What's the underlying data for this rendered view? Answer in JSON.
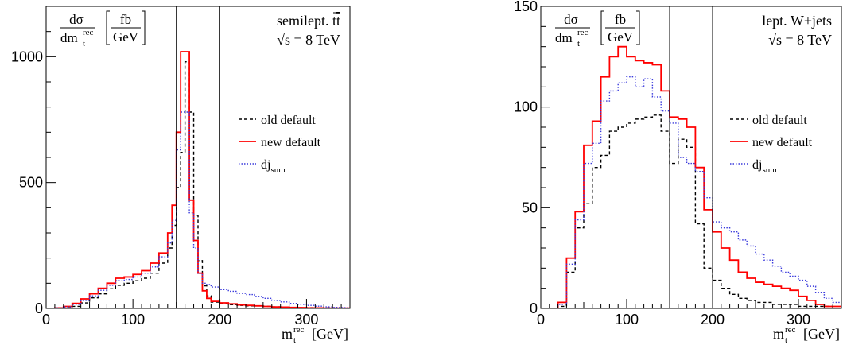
{
  "chart_data": [
    {
      "type": "step",
      "title": "",
      "xlabel_main": "m",
      "xlabel_sub": "t",
      "xlabel_sup": "rec",
      "xlabel_unit": "[GeV]",
      "ylabel_num": "dσ",
      "ylabel_den_main": "dm",
      "ylabel_den_sub": "t",
      "ylabel_den_sup": "rec",
      "ylabel_unit_num": "fb",
      "ylabel_unit_den": "GeV",
      "annotation_line1": "semilept. t",
      "annotation_line1_tbar": "t",
      "annotation_line2": "√s = 8 TeV",
      "xlim": [
        0,
        350
      ],
      "ylim": [
        0,
        1200
      ],
      "x_ticks": [
        0,
        100,
        200,
        300
      ],
      "x_tick_labels": [
        "0",
        "100",
        "200",
        "300"
      ],
      "y_ticks": [
        0,
        500,
        1000
      ],
      "y_tick_labels": [
        "0",
        "500",
        "1000"
      ],
      "vertical_lines": [
        150,
        200
      ],
      "bin_edges": [
        0,
        10,
        20,
        30,
        40,
        50,
        60,
        70,
        80,
        90,
        100,
        110,
        120,
        130,
        140,
        145,
        150,
        155,
        160,
        165,
        170,
        175,
        180,
        185,
        190,
        200,
        210,
        220,
        230,
        240,
        250,
        260,
        270,
        280,
        290,
        300,
        310,
        320,
        330,
        340,
        350
      ],
      "series": [
        {
          "name": "old default",
          "color": "#000000",
          "dash": "4,3",
          "values": [
            0,
            0,
            2,
            8,
            22,
            42,
            58,
            78,
            92,
            100,
            110,
            120,
            140,
            180,
            240,
            330,
            480,
            620,
            980,
            780,
            370,
            190,
            90,
            50,
            25,
            20,
            15,
            12,
            10,
            10,
            8,
            6,
            5,
            4,
            3,
            3,
            2,
            2,
            1,
            1
          ]
        },
        {
          "name": "new default",
          "color": "#ff0000",
          "dash": "",
          "values": [
            0,
            2,
            8,
            20,
            38,
            58,
            80,
            100,
            120,
            125,
            135,
            150,
            180,
            220,
            300,
            410,
            700,
            1020,
            1020,
            430,
            270,
            140,
            70,
            40,
            28,
            22,
            18,
            14,
            12,
            10,
            8,
            6,
            5,
            4,
            3,
            2,
            2,
            1,
            1,
            1
          ]
        },
        {
          "name": "dj_sum",
          "label_main": "dj",
          "label_sub": "sum",
          "color": "#3a3adc",
          "dash": "1.5,2",
          "values": [
            0,
            2,
            6,
            16,
            32,
            50,
            72,
            92,
            110,
            115,
            125,
            140,
            165,
            205,
            260,
            350,
            630,
            780,
            780,
            380,
            240,
            140,
            100,
            95,
            85,
            75,
            68,
            60,
            55,
            48,
            40,
            32,
            26,
            20,
            16,
            12,
            9,
            6,
            4,
            3
          ]
        }
      ]
    },
    {
      "type": "step",
      "title": "",
      "xlabel_main": "m",
      "xlabel_sub": "t",
      "xlabel_sup": "rec",
      "xlabel_unit": "[GeV]",
      "ylabel_num": "dσ",
      "ylabel_den_main": "dm",
      "ylabel_den_sub": "t",
      "ylabel_den_sup": "rec",
      "ylabel_unit_num": "fb",
      "ylabel_unit_den": "GeV",
      "annotation_line1": "lept. W+jets",
      "annotation_line2": "√s = 8 TeV",
      "xlim": [
        0,
        350
      ],
      "ylim": [
        0,
        150
      ],
      "x_ticks": [
        0,
        100,
        200,
        300
      ],
      "x_tick_labels": [
        "0",
        "100",
        "200",
        "300"
      ],
      "y_ticks": [
        0,
        50,
        100,
        150
      ],
      "y_tick_labels": [
        "0",
        "50",
        "100",
        "150"
      ],
      "vertical_lines": [
        150,
        200
      ],
      "bin_edges": [
        0,
        10,
        20,
        30,
        40,
        50,
        60,
        70,
        80,
        90,
        100,
        110,
        120,
        130,
        140,
        150,
        160,
        170,
        180,
        190,
        200,
        210,
        220,
        230,
        240,
        250,
        260,
        270,
        280,
        290,
        300,
        310,
        320,
        330,
        340,
        350
      ],
      "series": [
        {
          "name": "old default",
          "color": "#000000",
          "dash": "4,3",
          "values": [
            0,
            0,
            1,
            18,
            40,
            52,
            70,
            76,
            88,
            90,
            92,
            94,
            95,
            96,
            88,
            72,
            84,
            80,
            42,
            20,
            14,
            10,
            7,
            5,
            4,
            3,
            3,
            2,
            2,
            2,
            1,
            1,
            1,
            1,
            0
          ]
        },
        {
          "name": "new default",
          "color": "#ff0000",
          "dash": "",
          "values": [
            0,
            0,
            3,
            25,
            48,
            81,
            93,
            115,
            125,
            130,
            125,
            123,
            122,
            121,
            108,
            95,
            94,
            90,
            70,
            49,
            38,
            30,
            24,
            18,
            15,
            13,
            12,
            11,
            10,
            9,
            6,
            4,
            2,
            1,
            1
          ]
        },
        {
          "name": "dj_sum",
          "label_main": "dj",
          "label_sub": "sum",
          "color": "#3a3adc",
          "dash": "1.5,2",
          "values": [
            0,
            0,
            2,
            22,
            44,
            72,
            82,
            103,
            108,
            112,
            115,
            110,
            114,
            105,
            98,
            92,
            75,
            72,
            68,
            55,
            43,
            40,
            38,
            34,
            31,
            27,
            24,
            21,
            18,
            16,
            14,
            11,
            8,
            5,
            3
          ]
        }
      ]
    }
  ]
}
